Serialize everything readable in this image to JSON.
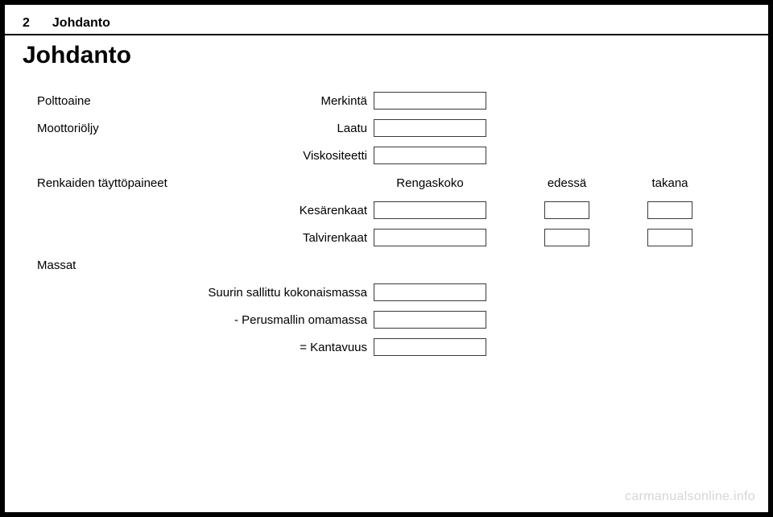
{
  "page": {
    "number": "2",
    "header_section": "Johdanto",
    "title": "Johdanto"
  },
  "labels": {
    "polttoaine": "Polttoaine",
    "merkinta": "Merkintä",
    "moottorioljy": "Moottoriöljy",
    "laatu": "Laatu",
    "viskositeetti": "Viskositeetti",
    "renkaiden": "Renkaiden täyttöpaineet",
    "rengaskoko": "Rengaskoko",
    "edessa": "edessä",
    "takana": "takana",
    "kesarenkaat": "Kesärenkaat",
    "talvirenkaat": "Talvirenkaat",
    "massat": "Massat",
    "suurin": "Suurin sallittu kokonaismassa",
    "perusmalli": "- Perusmallin omamassa",
    "kantavuus": "= Kantavuus"
  },
  "watermark": "carmanualsonline.info",
  "style": {
    "field_border": "#3a3a3a",
    "bg": "#ffffff",
    "text": "#000000",
    "watermark_color": "#d6d6d6"
  }
}
